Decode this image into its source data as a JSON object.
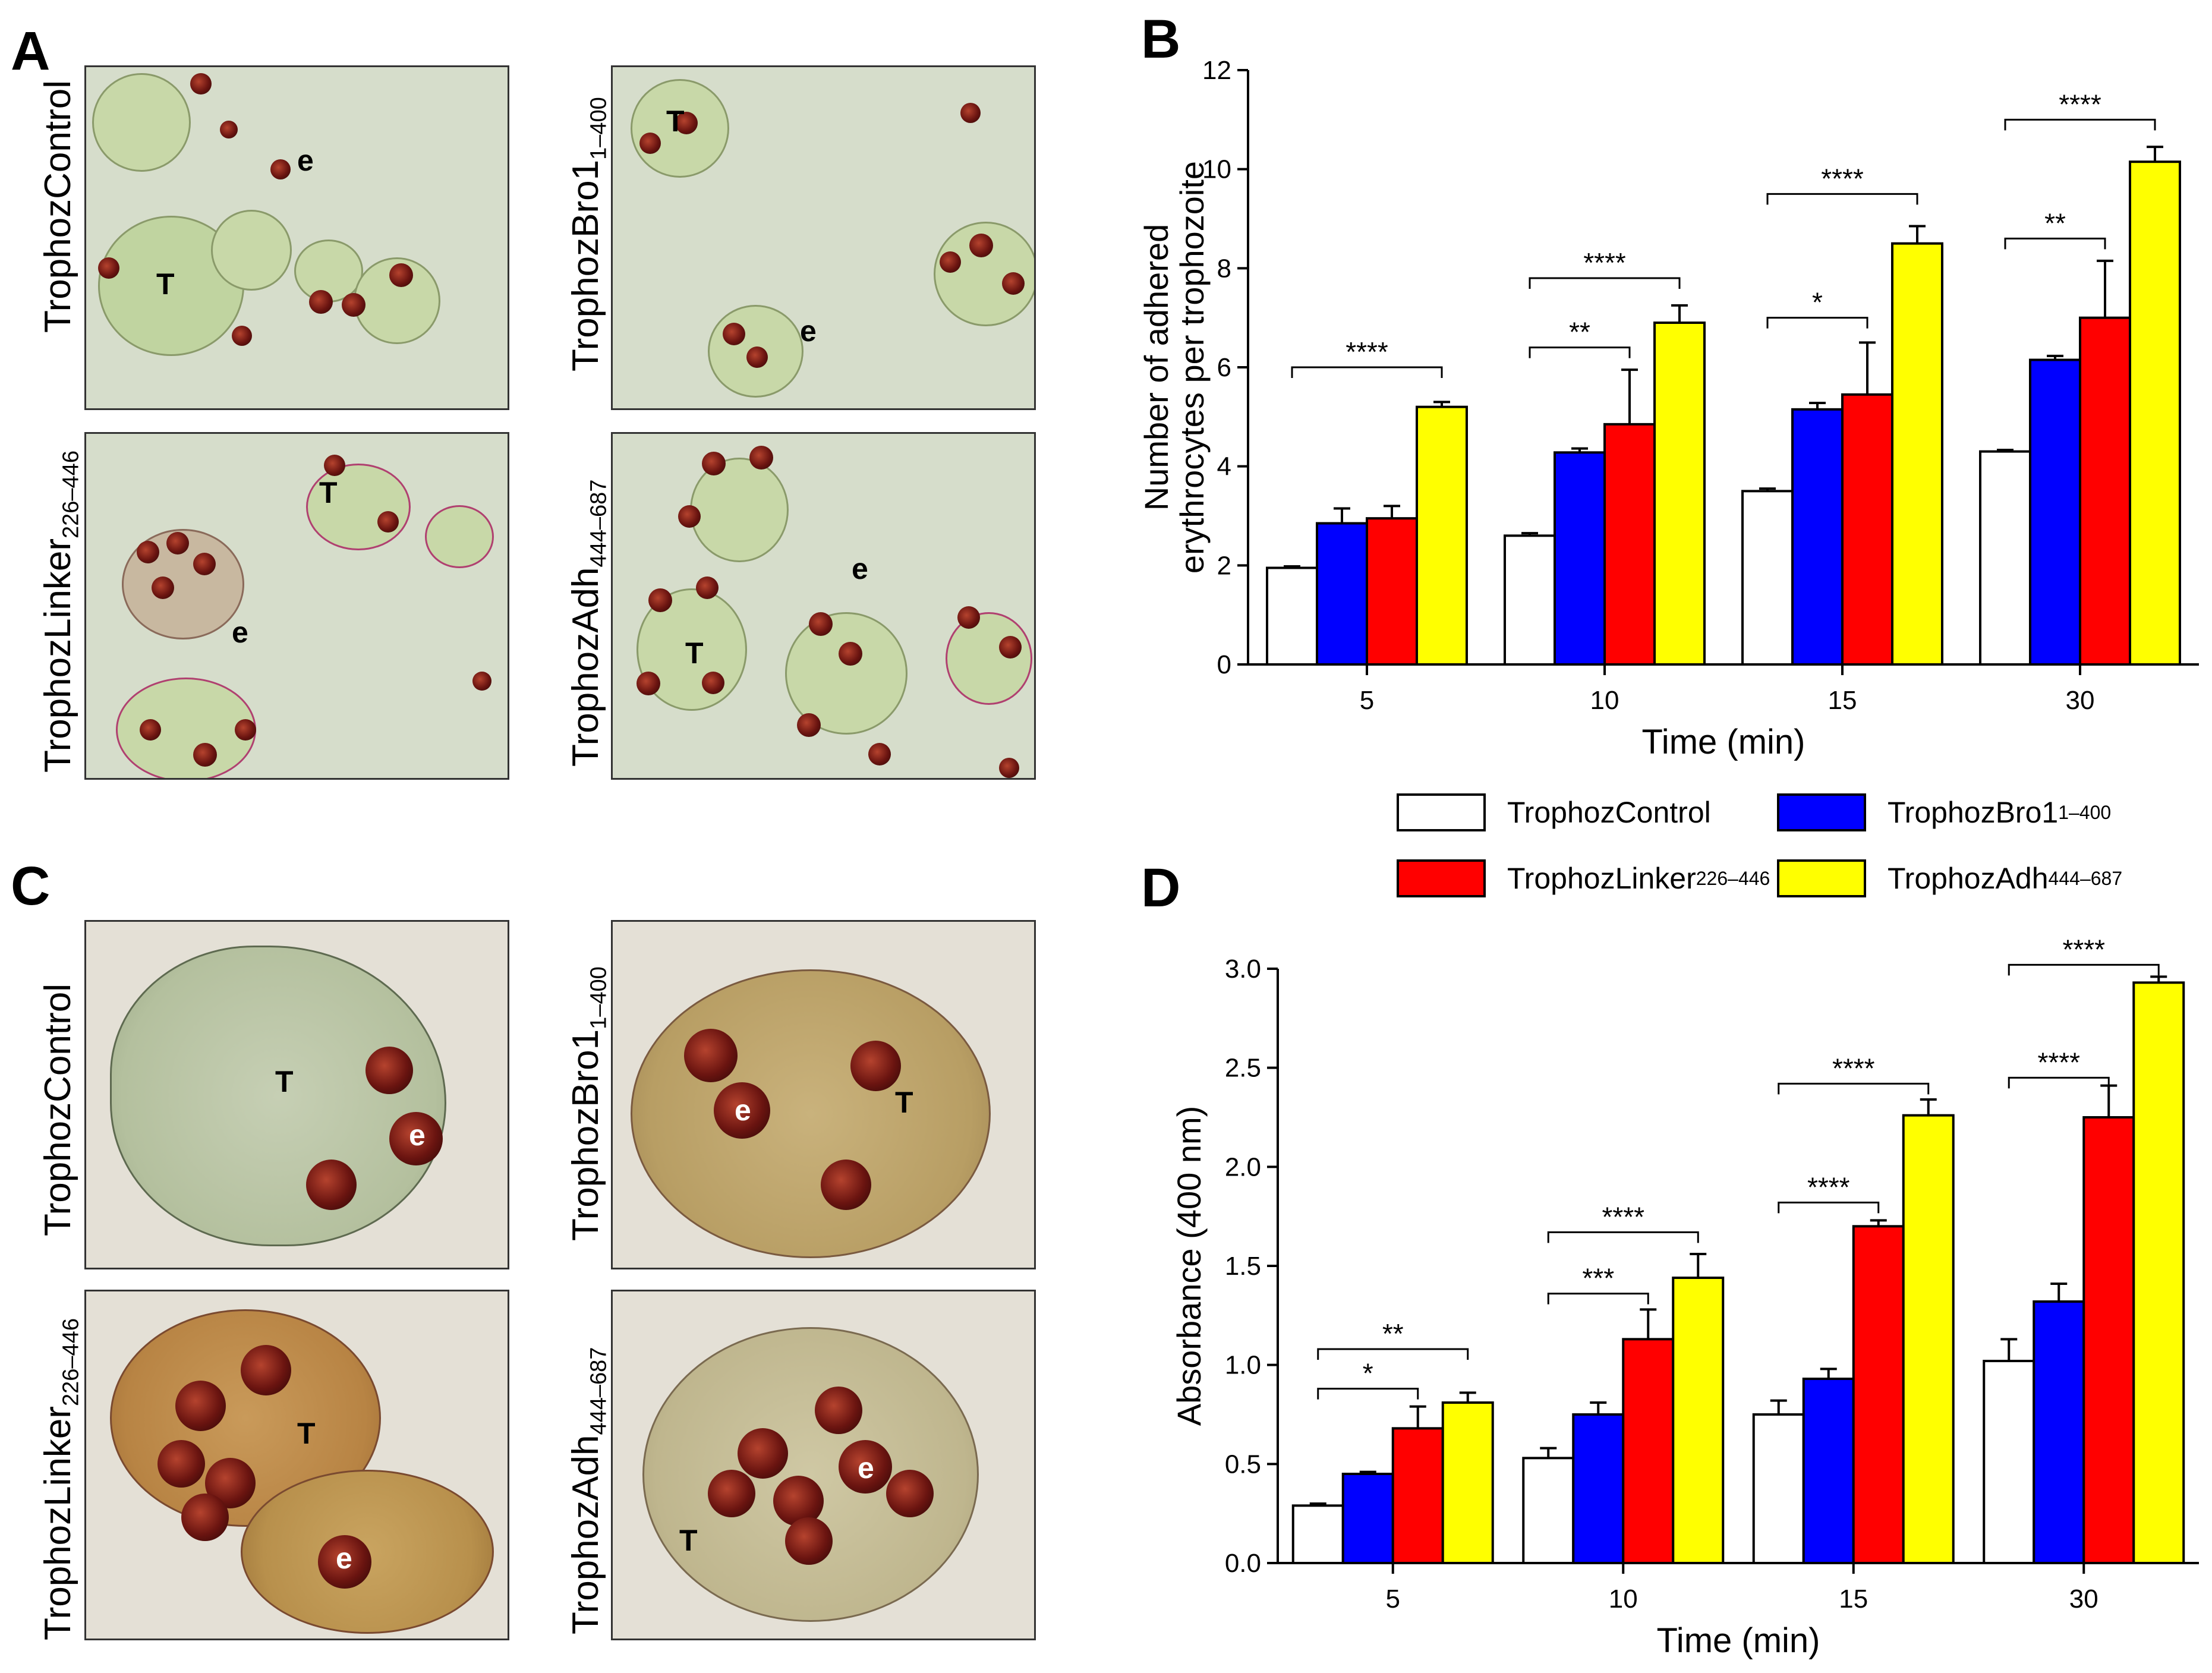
{
  "panels": {
    "A": {
      "letter": "A",
      "images": [
        {
          "label": "TrophozControl",
          "sub": "",
          "marks": [
            "T",
            "e"
          ]
        },
        {
          "label": "TrophozBro1",
          "sub": "1–400",
          "marks": [
            "T",
            "e"
          ]
        },
        {
          "label": "TrophozLinker",
          "sub": "226–446",
          "marks": [
            "T",
            "e"
          ]
        },
        {
          "label": "TrophozAdh",
          "sub": "444–687",
          "marks": [
            "T",
            "e"
          ]
        }
      ]
    },
    "C": {
      "letter": "C",
      "images": [
        {
          "label": "TrophozControl",
          "sub": "",
          "marks": [
            "T",
            "e"
          ]
        },
        {
          "label": "TrophozBro1",
          "sub": "1–400",
          "marks": [
            "e",
            "T"
          ]
        },
        {
          "label": "TrophozLinker",
          "sub": "226–446",
          "marks": [
            "T",
            "e"
          ]
        },
        {
          "label": "TrophozAdh",
          "sub": "444–687",
          "marks": [
            "e",
            "T"
          ]
        }
      ]
    },
    "B": {
      "letter": "B"
    },
    "D": {
      "letter": "D"
    }
  },
  "legend": [
    {
      "name": "TrophozControl",
      "sub": "",
      "color": "#ffffff"
    },
    {
      "name": "TrophozBro1",
      "sub": "1–400",
      "color": "#0000ff"
    },
    {
      "name": "TrophozLinker",
      "sub": "226–446",
      "color": "#ff0000"
    },
    {
      "name": "TrophozAdh",
      "sub": "444–687",
      "color": "#ffff00"
    }
  ],
  "chart_data": [
    {
      "id": "B",
      "type": "bar",
      "title": "",
      "xlabel": "Time (min)",
      "ylabel": [
        "Number of adhered",
        "erythrocytes per trophozoite"
      ],
      "categories": [
        "5",
        "10",
        "15",
        "30"
      ],
      "ylim": [
        0,
        12
      ],
      "yticks": [
        0,
        2,
        4,
        6,
        8,
        10,
        12
      ],
      "series": [
        {
          "name": "TrophozControl",
          "color": "#ffffff",
          "values": [
            1.95,
            2.6,
            3.5,
            4.3
          ],
          "errors": [
            0.03,
            0.05,
            0.05,
            0.03
          ]
        },
        {
          "name": "TrophozBro1 1–400",
          "color": "#0000ff",
          "values": [
            2.85,
            4.28,
            5.15,
            6.15
          ],
          "errors": [
            0.3,
            0.08,
            0.13,
            0.08
          ]
        },
        {
          "name": "TrophozLinker 226–446",
          "color": "#ff0000",
          "values": [
            2.95,
            4.85,
            5.45,
            7.0
          ],
          "errors": [
            0.25,
            1.1,
            1.05,
            1.15
          ]
        },
        {
          "name": "TrophozAdh 444–687",
          "color": "#ffff00",
          "values": [
            5.2,
            6.9,
            8.5,
            10.15
          ],
          "errors": [
            0.1,
            0.35,
            0.35,
            0.3
          ]
        }
      ],
      "annotations": [
        {
          "category": 0,
          "from": 0,
          "to": 3,
          "label": "****",
          "level": 6.0
        },
        {
          "category": 1,
          "from": 0,
          "to": 2,
          "label": "**",
          "level": 6.4
        },
        {
          "category": 1,
          "from": 0,
          "to": 3,
          "label": "****",
          "level": 7.8
        },
        {
          "category": 2,
          "from": 0,
          "to": 2,
          "label": "*",
          "level": 7.0
        },
        {
          "category": 2,
          "from": 0,
          "to": 3,
          "label": "****",
          "level": 9.5
        },
        {
          "category": 3,
          "from": 0,
          "to": 2,
          "label": "**",
          "level": 8.6
        },
        {
          "category": 3,
          "from": 0,
          "to": 3,
          "label": "****",
          "level": 11.0
        }
      ]
    },
    {
      "id": "D",
      "type": "bar",
      "title": "",
      "xlabel": "Time (min)",
      "ylabel": [
        "Absorbance (400 nm)"
      ],
      "categories": [
        "5",
        "10",
        "15",
        "30"
      ],
      "ylim": [
        0,
        3.0
      ],
      "yticks": [
        "0.0",
        "0.5",
        "1.0",
        "1.5",
        "2.0",
        "2.5",
        "3.0"
      ],
      "series": [
        {
          "name": "TrophozControl",
          "color": "#ffffff",
          "values": [
            0.29,
            0.53,
            0.75,
            1.02
          ],
          "errors": [
            0.01,
            0.05,
            0.07,
            0.11
          ]
        },
        {
          "name": "TrophozBro1 1–400",
          "color": "#0000ff",
          "values": [
            0.45,
            0.75,
            0.93,
            1.32
          ],
          "errors": [
            0.01,
            0.06,
            0.05,
            0.09
          ]
        },
        {
          "name": "TrophozLinker 226–446",
          "color": "#ff0000",
          "values": [
            0.68,
            1.13,
            1.7,
            2.25
          ],
          "errors": [
            0.11,
            0.15,
            0.03,
            0.16
          ]
        },
        {
          "name": "TrophozAdh 444–687",
          "color": "#ffff00",
          "values": [
            0.81,
            1.44,
            2.26,
            2.93
          ],
          "errors": [
            0.05,
            0.12,
            0.08,
            0.03
          ]
        }
      ],
      "annotations": [
        {
          "category": 0,
          "from": 0,
          "to": 2,
          "label": "*",
          "level": 0.88
        },
        {
          "category": 0,
          "from": 0,
          "to": 3,
          "label": "**",
          "level": 1.08
        },
        {
          "category": 1,
          "from": 0,
          "to": 2,
          "label": "***",
          "level": 1.36
        },
        {
          "category": 1,
          "from": 0,
          "to": 3,
          "label": "****",
          "level": 1.67
        },
        {
          "category": 2,
          "from": 0,
          "to": 2,
          "label": "****",
          "level": 1.82
        },
        {
          "category": 2,
          "from": 0,
          "to": 3,
          "label": "****",
          "level": 2.42
        },
        {
          "category": 3,
          "from": 0,
          "to": 2,
          "label": "****",
          "level": 2.45
        },
        {
          "category": 3,
          "from": 0,
          "to": 3,
          "label": "****",
          "level": 3.02
        }
      ]
    }
  ]
}
